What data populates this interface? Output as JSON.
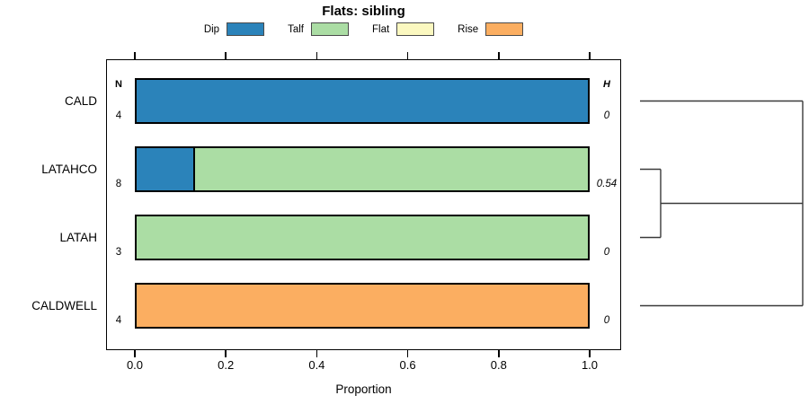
{
  "title": "Flats: sibling",
  "legend": {
    "items": [
      {
        "label": "Dip",
        "color": "#2B83BA"
      },
      {
        "label": "Talf",
        "color": "#ABDDA4"
      },
      {
        "label": "Flat",
        "color": "#FBF8C0"
      },
      {
        "label": "Rise",
        "color": "#FBAE61"
      }
    ]
  },
  "columns": {
    "n_header": "N",
    "h_header": "H"
  },
  "axis": {
    "xlabel": "Proportion",
    "xticks": [
      0,
      0.2,
      0.4,
      0.6,
      0.8,
      1.0
    ],
    "xtick_labels": [
      "0.0",
      "0.2",
      "0.4",
      "0.6",
      "0.8",
      "1.0"
    ]
  },
  "rows": [
    {
      "label": "CALD",
      "n": "4",
      "h": "0",
      "segments": [
        {
          "name": "Dip",
          "value": 1.0
        }
      ]
    },
    {
      "label": "LATAHCO",
      "n": "8",
      "h": "0.54",
      "segments": [
        {
          "name": "Dip",
          "value": 0.125
        },
        {
          "name": "Talf",
          "value": 0.875
        }
      ]
    },
    {
      "label": "LATAH",
      "n": "3",
      "h": "0",
      "segments": [
        {
          "name": "Talf",
          "value": 1.0
        }
      ]
    },
    {
      "label": "CALDWELL",
      "n": "4",
      "h": "0",
      "segments": [
        {
          "name": "Rise",
          "value": 1.0
        }
      ]
    }
  ],
  "colors": {
    "Dip": "#2B83BA",
    "Talf": "#ABDDA4",
    "Flat": "#FBF8C0",
    "Rise": "#FBAE61",
    "dendrogram_line": "#3a3a3a"
  },
  "chart_data": {
    "type": "bar",
    "orientation": "horizontal",
    "stacked": true,
    "title": "Flats: sibling",
    "xlabel": "Proportion",
    "ylabel": "",
    "xlim": [
      0,
      1
    ],
    "xticks": [
      0,
      0.2,
      0.4,
      0.6,
      0.8,
      1.0
    ],
    "grid": false,
    "legend_position": "top",
    "categories": [
      "CALD",
      "LATAHCO",
      "LATAH",
      "CALDWELL"
    ],
    "series": [
      {
        "name": "Dip",
        "color": "#2B83BA",
        "values": [
          1.0,
          0.125,
          0.0,
          0.0
        ]
      },
      {
        "name": "Talf",
        "color": "#ABDDA4",
        "values": [
          0.0,
          0.875,
          1.0,
          0.0
        ]
      },
      {
        "name": "Flat",
        "color": "#FBF8C0",
        "values": [
          0.0,
          0.0,
          0.0,
          0.0
        ]
      },
      {
        "name": "Rise",
        "color": "#FBAE61",
        "values": [
          0.0,
          0.0,
          0.0,
          1.0
        ]
      }
    ],
    "annotations": {
      "N": {
        "header": "N",
        "values": [
          4,
          8,
          3,
          4
        ]
      },
      "H": {
        "header": "H",
        "values": [
          "0",
          "0.54",
          "0",
          "0"
        ]
      }
    },
    "dendrogram": {
      "side": "right",
      "leaves": [
        "CALD",
        "LATAHCO",
        "LATAH",
        "CALDWELL"
      ],
      "segments": [
        {
          "x1": 0,
          "y1": 0,
          "x2": 1,
          "y2": 0
        },
        {
          "x1": 0,
          "y1": 1,
          "x2": 0.127,
          "y2": 1
        },
        {
          "x1": 0,
          "y1": 2,
          "x2": 0.127,
          "y2": 2
        },
        {
          "x1": 0.127,
          "y1": 1,
          "x2": 0.127,
          "y2": 2
        },
        {
          "x1": 0.127,
          "y1": 1.5,
          "x2": 1,
          "y2": 1.5
        },
        {
          "x1": 0,
          "y1": 3,
          "x2": 1,
          "y2": 3
        },
        {
          "x1": 1,
          "y1": 0,
          "x2": 1,
          "y2": 3
        }
      ]
    }
  }
}
